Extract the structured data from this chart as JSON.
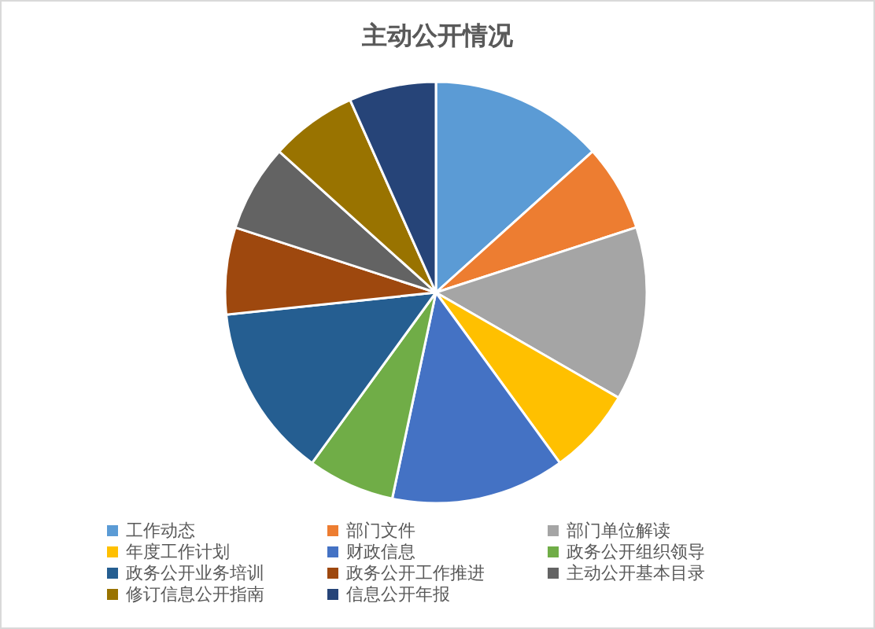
{
  "chart_data": {
    "type": "pie",
    "title": "主动公开情况",
    "categories": [
      "工作动态",
      "部门文件",
      "部门单位解读",
      "年度工作计划",
      "财政信息",
      "政务公开组织领导",
      "政务公开业务培训",
      "政务公开工作推进",
      "主动公开基本目录",
      "修订信息公开指南",
      "信息公开年报"
    ],
    "values": [
      13.33,
      6.67,
      13.33,
      6.67,
      13.33,
      6.67,
      13.33,
      6.67,
      6.67,
      6.67,
      6.67
    ],
    "colors": [
      "#5b9bd5",
      "#ed7d31",
      "#a5a5a5",
      "#ffc000",
      "#4472c4",
      "#70ad47",
      "#255e91",
      "#9e480e",
      "#636363",
      "#997300",
      "#264478"
    ],
    "legend": "bottom"
  }
}
